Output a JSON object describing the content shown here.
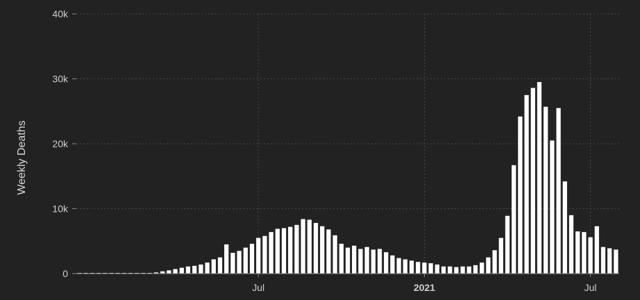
{
  "chart_data": {
    "type": "bar",
    "ylabel": "Weekly Deaths",
    "ylim": [
      0,
      40000
    ],
    "yticks": [
      0,
      10000,
      20000,
      30000,
      40000
    ],
    "ytick_labels": [
      "0",
      "10k",
      "20k",
      "30k",
      "40k"
    ],
    "xticks": [
      {
        "label": "Jul",
        "week_index": 28,
        "bold": false
      },
      {
        "label": "2021",
        "week_index": 54,
        "bold": true
      },
      {
        "label": "Jul",
        "week_index": 80,
        "bold": false
      }
    ],
    "grid": true,
    "bar_color": "#ffffff",
    "background_color": "#222222",
    "values": [
      10,
      15,
      20,
      25,
      5,
      5,
      5,
      20,
      30,
      40,
      60,
      100,
      180,
      350,
      500,
      700,
      900,
      1100,
      1200,
      1400,
      1700,
      2200,
      2500,
      4500,
      3200,
      3500,
      4000,
      4600,
      5500,
      5800,
      6400,
      6900,
      7000,
      7200,
      7500,
      8400,
      8300,
      7800,
      7300,
      6800,
      5900,
      4600,
      4000,
      4300,
      3800,
      4100,
      3700,
      3800,
      3300,
      2800,
      2400,
      2200,
      2000,
      1800,
      1700,
      1600,
      1400,
      1100,
      1100,
      1000,
      1100,
      1100,
      1300,
      1700,
      2500,
      3600,
      5500,
      8900,
      16700,
      24200,
      27500,
      28600,
      29500,
      25700,
      20500,
      25500,
      14200,
      9000,
      6500,
      6400,
      5600,
      7300,
      4100,
      3900,
      3700
    ]
  }
}
